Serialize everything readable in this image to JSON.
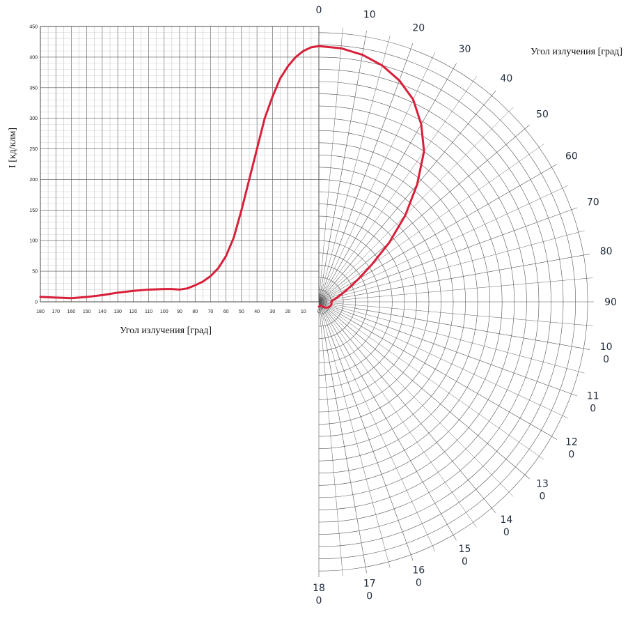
{
  "chart_data": {
    "type": "line",
    "title": "",
    "xlabel": "Угол излучения [град]",
    "ylabel": "I [кд/клм]",
    "xlim": [
      180,
      0
    ],
    "ylim": [
      0,
      450
    ],
    "grid": true,
    "x_ticks": [
      180,
      170,
      160,
      150,
      140,
      130,
      120,
      110,
      100,
      90,
      80,
      70,
      60,
      50,
      40,
      30,
      20,
      10,
      0
    ],
    "y_ticks": [
      0,
      50,
      100,
      150,
      200,
      250,
      300,
      350,
      400,
      450
    ],
    "polar": {
      "label": "Угол излучения [град]",
      "angle_labels": [
        {
          "angle": 0,
          "text": [
            "0"
          ]
        },
        {
          "angle": 10,
          "text": [
            "10"
          ]
        },
        {
          "angle": 20,
          "text": [
            "20"
          ]
        },
        {
          "angle": 30,
          "text": [
            "30"
          ]
        },
        {
          "angle": 40,
          "text": [
            "40"
          ]
        },
        {
          "angle": 50,
          "text": [
            "50"
          ]
        },
        {
          "angle": 60,
          "text": [
            "60"
          ]
        },
        {
          "angle": 70,
          "text": [
            "70"
          ]
        },
        {
          "angle": 80,
          "text": [
            "80"
          ]
        },
        {
          "angle": 90,
          "text": [
            "90"
          ]
        },
        {
          "angle": 100,
          "text": [
            "10",
            "0"
          ]
        },
        {
          "angle": 110,
          "text": [
            "11",
            "0"
          ]
        },
        {
          "angle": 120,
          "text": [
            "12",
            "0"
          ]
        },
        {
          "angle": 130,
          "text": [
            "13",
            "0"
          ]
        },
        {
          "angle": 140,
          "text": [
            "14",
            "0"
          ]
        },
        {
          "angle": 150,
          "text": [
            "15",
            "0"
          ]
        },
        {
          "angle": 160,
          "text": [
            "16",
            "0"
          ]
        },
        {
          "angle": 170,
          "text": [
            "17",
            "0"
          ]
        },
        {
          "angle": 180,
          "text": [
            "18",
            "0"
          ]
        }
      ]
    },
    "series": [
      {
        "color": "#d8203a",
        "x": [
          0,
          5,
          10,
          15,
          20,
          25,
          30,
          35,
          40,
          45,
          50,
          55,
          60,
          65,
          70,
          75,
          80,
          85,
          90,
          95,
          100,
          110,
          120,
          130,
          140,
          150,
          160,
          170,
          180
        ],
        "y": [
          418,
          416,
          410,
          400,
          385,
          365,
          335,
          300,
          250,
          200,
          150,
          105,
          75,
          55,
          42,
          33,
          27,
          22,
          20,
          21,
          21,
          20,
          18,
          15,
          11,
          8,
          6,
          7,
          8
        ]
      }
    ]
  }
}
